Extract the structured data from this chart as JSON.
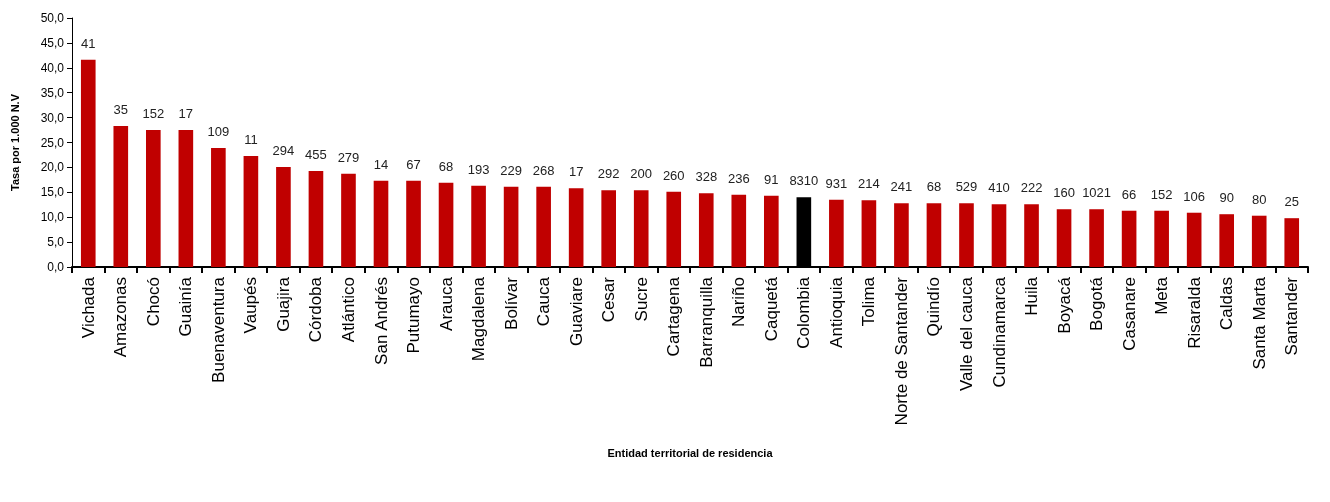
{
  "chart_data": {
    "type": "bar",
    "xlabel": "Entidad territorial de residencia",
    "ylabel": "Tasa por 1.000 N.V",
    "categories": [
      "Vichada",
      "Amazonas",
      "Chocó",
      "Guainía",
      "Buenaventura",
      "Vaupés",
      "Guajira",
      "Córdoba",
      "Atlántico",
      "San Andrés",
      "Putumayo",
      "Arauca",
      "Magdalena",
      "Bolívar",
      "Cauca",
      "Guaviare",
      "Cesar",
      "Sucre",
      "Cartagena",
      "Barranquilla",
      "Nariño",
      "Caquetá",
      "Colombia",
      "Antioquia",
      "Tolima",
      "Norte de Santander",
      "Quindío",
      "Valle del cauca",
      "Cundinamarca",
      "Huila",
      "Boyacá",
      "Bogotá",
      "Casanare",
      "Meta",
      "Risaralda",
      "Caldas",
      "Santa Marta",
      "Santander"
    ],
    "values": [
      41.6,
      28.3,
      27.5,
      27.5,
      23.9,
      22.3,
      20.1,
      19.3,
      18.7,
      17.3,
      17.3,
      16.9,
      16.3,
      16.1,
      16.1,
      15.8,
      15.4,
      15.4,
      15.1,
      14.8,
      14.5,
      14.3,
      14.0,
      13.5,
      13.4,
      12.8,
      12.8,
      12.8,
      12.6,
      12.6,
      11.6,
      11.6,
      11.3,
      11.3,
      10.9,
      10.6,
      10.3,
      9.8
    ],
    "annotations": [
      {
        "text": "41",
        "x": "Vichada",
        "y": 41.6
      },
      {
        "text": "35",
        "x": "Amazonas",
        "y": 28.3
      },
      {
        "text": "152",
        "x": "Chocó",
        "y": 27.5
      },
      {
        "text": "17",
        "x": "Guainía",
        "y": 27.5
      },
      {
        "text": "109",
        "x": "Buenaventura",
        "y": 23.9
      },
      {
        "text": "11",
        "x": "Vaupés",
        "y": 22.3
      },
      {
        "text": "294",
        "x": "Guajira",
        "y": 20.1
      },
      {
        "text": "455",
        "x": "Córdoba",
        "y": 19.3
      },
      {
        "text": "279",
        "x": "Atlántico",
        "y": 18.7
      },
      {
        "text": "14",
        "x": "San Andrés",
        "y": 17.3
      },
      {
        "text": "67",
        "x": "Putumayo",
        "y": 17.3
      },
      {
        "text": "68",
        "x": "Arauca",
        "y": 16.9
      },
      {
        "text": "193",
        "x": "Magdalena",
        "y": 16.3
      },
      {
        "text": "229",
        "x": "Bolívar",
        "y": 16.1
      },
      {
        "text": "268",
        "x": "Cauca",
        "y": 16.1
      },
      {
        "text": "17",
        "x": "Guaviare",
        "y": 15.8
      },
      {
        "text": "292",
        "x": "Cesar",
        "y": 15.4
      },
      {
        "text": "200",
        "x": "Sucre",
        "y": 15.4
      },
      {
        "text": "260",
        "x": "Cartagena",
        "y": 15.1
      },
      {
        "text": "328",
        "x": "Barranquilla",
        "y": 14.8
      },
      {
        "text": "236",
        "x": "Nariño",
        "y": 14.5
      },
      {
        "text": "91",
        "x": "Caquetá",
        "y": 14.3
      },
      {
        "text": "8310",
        "x": "Colombia",
        "y": 14.0
      },
      {
        "text": "931",
        "x": "Antioquia",
        "y": 13.5
      },
      {
        "text": "214",
        "x": "Tolima",
        "y": 13.4
      },
      {
        "text": "241",
        "x": "Norte de Santander",
        "y": 12.8
      },
      {
        "text": "68",
        "x": "Quindío",
        "y": 12.8
      },
      {
        "text": "529",
        "x": "Valle del cauca",
        "y": 12.8
      },
      {
        "text": "410",
        "x": "Cundinamarca",
        "y": 12.6
      },
      {
        "text": "222",
        "x": "Huila",
        "y": 12.6
      },
      {
        "text": "160",
        "x": "Boyacá",
        "y": 11.6
      },
      {
        "text": "1021",
        "x": "Bogotá",
        "y": 11.6
      },
      {
        "text": "66",
        "x": "Casanare",
        "y": 11.3
      },
      {
        "text": "152",
        "x": "Meta",
        "y": 11.3
      },
      {
        "text": "106",
        "x": "Risaralda",
        "y": 10.9
      },
      {
        "text": "90",
        "x": "Caldas",
        "y": 10.6
      },
      {
        "text": "80",
        "x": "Santa Marta",
        "y": 10.3
      },
      {
        "text": "25",
        "x": "Santander",
        "y": 9.8
      }
    ],
    "colors": [
      "#c00000",
      "#c00000",
      "#c00000",
      "#c00000",
      "#c00000",
      "#c00000",
      "#c00000",
      "#c00000",
      "#c00000",
      "#c00000",
      "#c00000",
      "#c00000",
      "#c00000",
      "#c00000",
      "#c00000",
      "#c00000",
      "#c00000",
      "#c00000",
      "#c00000",
      "#c00000",
      "#c00000",
      "#c00000",
      "#000000",
      "#c00000",
      "#c00000",
      "#c00000",
      "#c00000",
      "#c00000",
      "#c00000",
      "#c00000",
      "#c00000",
      "#c00000",
      "#c00000",
      "#c00000",
      "#c00000",
      "#c00000",
      "#c00000",
      "#c00000"
    ],
    "ylim": [
      0,
      50
    ],
    "yticks": [
      {
        "value": 0,
        "label": "0,0"
      },
      {
        "value": 5,
        "label": "5,0"
      },
      {
        "value": 10,
        "label": "10,0"
      },
      {
        "value": 15,
        "label": "15,0"
      },
      {
        "value": 20,
        "label": "20,0"
      },
      {
        "value": 25,
        "label": "25,0"
      },
      {
        "value": 30,
        "label": "30,0"
      },
      {
        "value": 35,
        "label": "35,0"
      },
      {
        "value": 40,
        "label": "40,0"
      },
      {
        "value": 45,
        "label": "45,0"
      },
      {
        "value": 50,
        "label": "50,0"
      }
    ],
    "grid": false
  }
}
